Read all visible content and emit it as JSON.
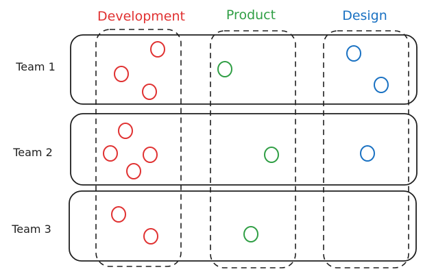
{
  "colors": {
    "development": "#e03131",
    "product": "#2f9e44",
    "design": "#1971c2",
    "stroke": "#1e1e1e"
  },
  "columns": [
    {
      "id": "development",
      "label": "Development",
      "color": "#e03131"
    },
    {
      "id": "product",
      "label": "Product",
      "color": "#2f9e44"
    },
    {
      "id": "design",
      "label": "Design",
      "color": "#1971c2"
    }
  ],
  "rows": [
    {
      "id": "team-1",
      "label": "Team 1"
    },
    {
      "id": "team-2",
      "label": "Team 2"
    },
    {
      "id": "team-3",
      "label": "Team 3"
    }
  ],
  "members": [
    {
      "team": "team-1",
      "column": "development",
      "count": 3
    },
    {
      "team": "team-1",
      "column": "product",
      "count": 1
    },
    {
      "team": "team-1",
      "column": "design",
      "count": 2
    },
    {
      "team": "team-2",
      "column": "development",
      "count": 4
    },
    {
      "team": "team-2",
      "column": "product",
      "count": 1
    },
    {
      "team": "team-2",
      "column": "design",
      "count": 1
    },
    {
      "team": "team-3",
      "column": "development",
      "count": 2
    },
    {
      "team": "team-3",
      "column": "product",
      "count": 1
    },
    {
      "team": "team-3",
      "column": "design",
      "count": 0
    }
  ]
}
